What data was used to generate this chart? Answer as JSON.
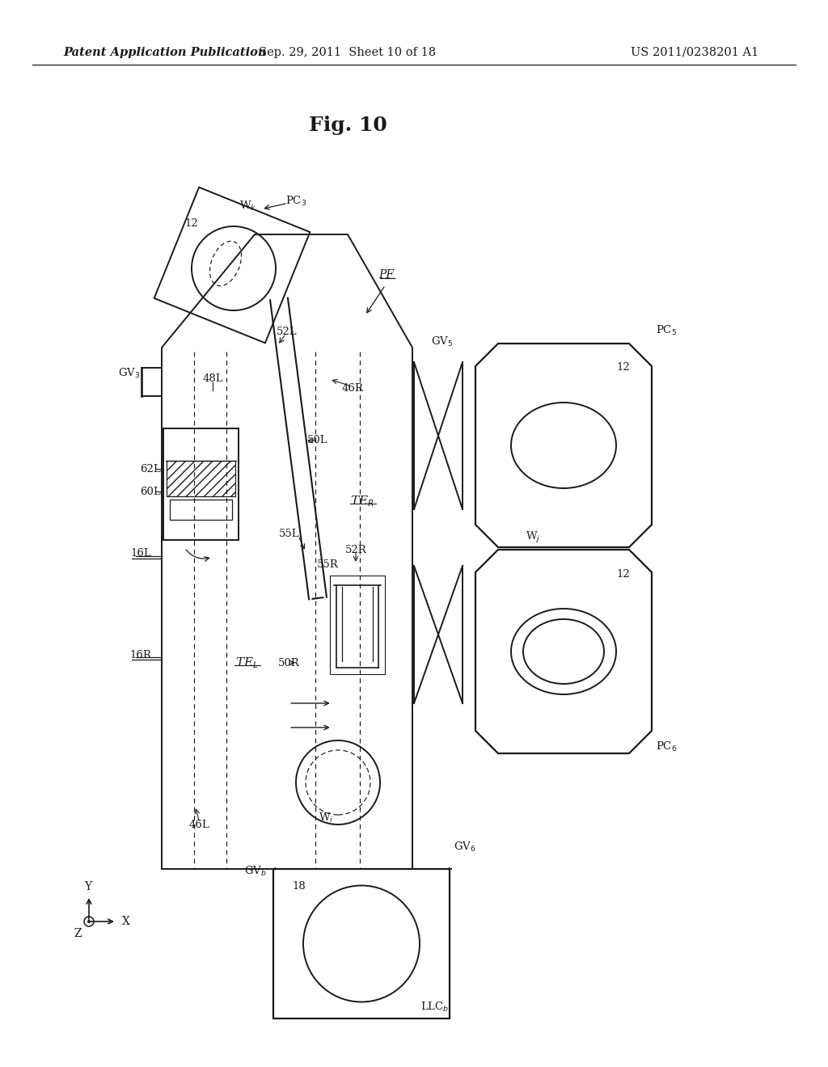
{
  "title": "Fig. 10",
  "header_left": "Patent Application Publication",
  "header_center": "Sep. 29, 2011  Sheet 10 of 18",
  "header_right": "US 2011/0238201 A1",
  "bg_color": "#ffffff",
  "line_color": "#1a1a1a",
  "lw": 1.4
}
